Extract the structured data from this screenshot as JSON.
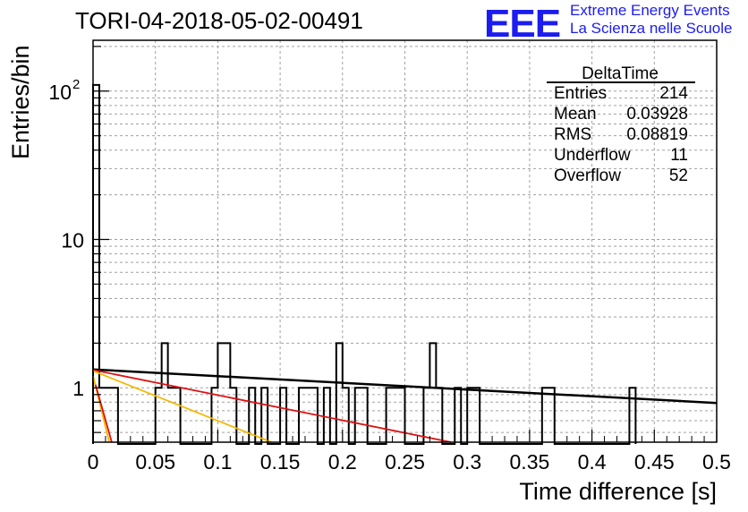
{
  "title": "TORI-04-2018-05-02-00491",
  "logo": {
    "mark": "EEE",
    "line1": "Extreme Energy Events",
    "line2": "La Scienza nelle Scuole",
    "color": "#1c1cf0"
  },
  "stats_box": {
    "name": "DeltaTime",
    "rows": [
      {
        "label": "Entries",
        "value": "214"
      },
      {
        "label": "Mean",
        "value": "0.03928"
      },
      {
        "label": "RMS",
        "value": "0.08819"
      },
      {
        "label": "Underflow",
        "value": "11"
      },
      {
        "label": "Overflow",
        "value": "52"
      }
    ]
  },
  "chart_data": {
    "type": "histogram",
    "title": "TORI-04-2018-05-02-00491",
    "xlabel": "Time difference [s]",
    "ylabel": "Entries/bin",
    "xlim": [
      0,
      0.5
    ],
    "ylim": [
      0.43,
      220
    ],
    "yscale": "log",
    "grid": true,
    "x_ticks": [
      "0",
      "0.05",
      "0.1",
      "0.15",
      "0.2",
      "0.25",
      "0.3",
      "0.35",
      "0.4",
      "0.45",
      "0.5"
    ],
    "y_ticks": [
      {
        "value": 1,
        "label": "1"
      },
      {
        "value": 10,
        "label": "10"
      },
      {
        "value": 100,
        "label": "10",
        "exponent": "2"
      }
    ],
    "bin_width": 0.005,
    "bins": [
      {
        "x": 0.0,
        "y": 110
      },
      {
        "x": 0.005,
        "y": 1
      },
      {
        "x": 0.01,
        "y": 1
      },
      {
        "x": 0.015,
        "y": 1
      },
      {
        "x": 0.05,
        "y": 1
      },
      {
        "x": 0.055,
        "y": 2
      },
      {
        "x": 0.06,
        "y": 1
      },
      {
        "x": 0.065,
        "y": 1
      },
      {
        "x": 0.095,
        "y": 1
      },
      {
        "x": 0.1,
        "y": 2
      },
      {
        "x": 0.105,
        "y": 2
      },
      {
        "x": 0.11,
        "y": 1
      },
      {
        "x": 0.125,
        "y": 1
      },
      {
        "x": 0.135,
        "y": 1
      },
      {
        "x": 0.15,
        "y": 1
      },
      {
        "x": 0.165,
        "y": 1
      },
      {
        "x": 0.17,
        "y": 1
      },
      {
        "x": 0.175,
        "y": 1
      },
      {
        "x": 0.185,
        "y": 1
      },
      {
        "x": 0.195,
        "y": 2
      },
      {
        "x": 0.2,
        "y": 1
      },
      {
        "x": 0.21,
        "y": 1
      },
      {
        "x": 0.215,
        "y": 1
      },
      {
        "x": 0.235,
        "y": 1
      },
      {
        "x": 0.24,
        "y": 1
      },
      {
        "x": 0.245,
        "y": 1
      },
      {
        "x": 0.265,
        "y": 1
      },
      {
        "x": 0.27,
        "y": 2
      },
      {
        "x": 0.275,
        "y": 1
      },
      {
        "x": 0.29,
        "y": 1
      },
      {
        "x": 0.3,
        "y": 1
      },
      {
        "x": 0.305,
        "y": 1
      },
      {
        "x": 0.36,
        "y": 1
      },
      {
        "x": 0.365,
        "y": 1
      },
      {
        "x": 0.43,
        "y": 1
      }
    ],
    "fits": [
      {
        "color": "#000000",
        "x": [
          0,
          0.5
        ],
        "y": [
          1.33,
          0.79
        ]
      },
      {
        "color": "#dd1111",
        "x": [
          0,
          0.287
        ],
        "y": [
          1.32,
          0.43
        ]
      },
      {
        "color": "#f5b800",
        "x": [
          0,
          0.143
        ],
        "y": [
          1.3,
          0.43
        ]
      },
      {
        "color": "#f5b800",
        "x": [
          0,
          0.013
        ],
        "y": [
          1.2,
          0.43
        ]
      },
      {
        "color": "#dd1111",
        "x": [
          0.002,
          0.015
        ],
        "y": [
          1.05,
          0.43
        ]
      }
    ]
  }
}
